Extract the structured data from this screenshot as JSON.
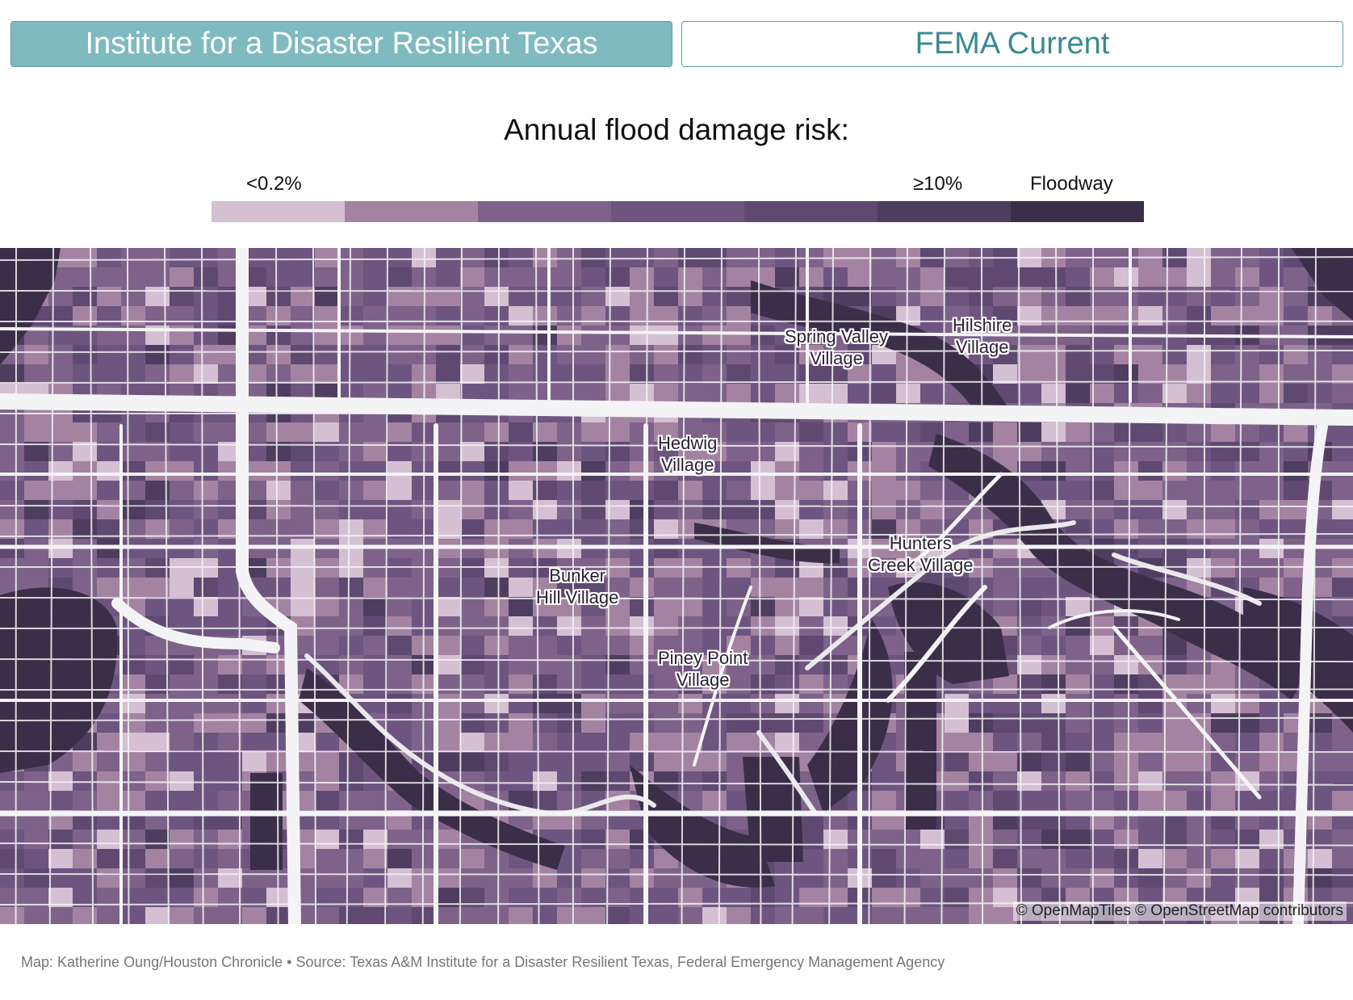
{
  "tabs": {
    "active": "Institute for a Disaster Resilient Texas",
    "inactive": "FEMA Current"
  },
  "legend": {
    "title": "Annual flood damage risk:",
    "low_label": "<0.2%",
    "high_label": "≥10%",
    "floodway_label": "Floodway",
    "colors": [
      "#d5bfd3",
      "#a483a2",
      "#7e6289",
      "#6e5580",
      "#5f4971",
      "#4e3d5f",
      "#3b2e48"
    ]
  },
  "map": {
    "places": [
      {
        "label": "Spring Valley\nVillage"
      },
      {
        "label": "Hilshire\nVillage"
      },
      {
        "label": "Hedwig\nVillage"
      },
      {
        "label": "Hunters\nCreek Village"
      },
      {
        "label": "Bunker\nHill Village"
      },
      {
        "label": "Piney Point\nVillage"
      }
    ],
    "attribution": "© OpenMapTiles © OpenStreetMap contributors"
  },
  "footer": {
    "credit": "Map: Katherine Oung/Houston Chronicle • Source: Texas A&M Institute for a Disaster Resilient Texas, Federal Emergency Management Agency"
  }
}
